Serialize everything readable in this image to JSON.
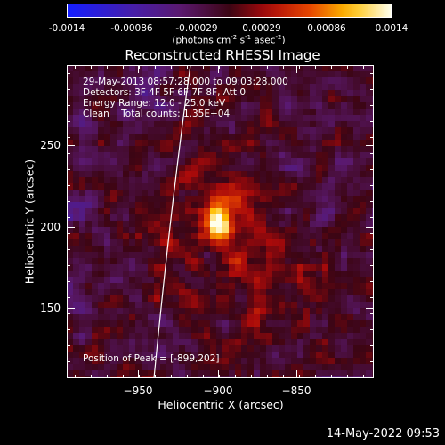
{
  "colorbar": {
    "tick_labels": [
      "-0.0014",
      "-0.00086",
      "-0.00029",
      "0.00029",
      "0.00086",
      "0.0014"
    ],
    "min": -0.0014,
    "max": 0.0014,
    "units_text": "(photons cm",
    "units_exp1": "-2",
    "units_mid": " s",
    "units_exp2": "-1",
    "units_end": " asec",
    "units_exp3": "-2",
    "units_close": ")"
  },
  "chart_data": {
    "type": "heatmap",
    "title": "Reconstructed RHESSI Image",
    "xlabel": "Heliocentric X (arcsec)",
    "ylabel": "Heliocentric Y (arcsec)",
    "xlim": [
      -992,
      -896
    ],
    "ylim": [
      99,
      291
    ],
    "xticks": [
      -950,
      -900,
      -850
    ],
    "xtick_labels": [
      "−950",
      "−900",
      "−850"
    ],
    "yticks": [
      150,
      200,
      250
    ],
    "ytick_labels": [
      "150",
      "200",
      "250"
    ],
    "peak": {
      "x": -899,
      "y": 202
    },
    "colormap": "rainbow-like: blue-purple-red-orange-yellow-white",
    "limb_line_color": "#ffffff"
  },
  "annotations": {
    "time_range": "29-May-2013 08:57:28.000 to 09:03:28.000",
    "detectors": "Detectors: 3F 4F 5F 6F 7F 8F, Att 0",
    "energy": "Energy Range: 12.0 - 25.0 keV",
    "clean": "Clean    Total counts: 1.35E+04",
    "peak_position": "Position of Peak = [-899,202]"
  },
  "timestamp": "14-May-2022 09:53"
}
